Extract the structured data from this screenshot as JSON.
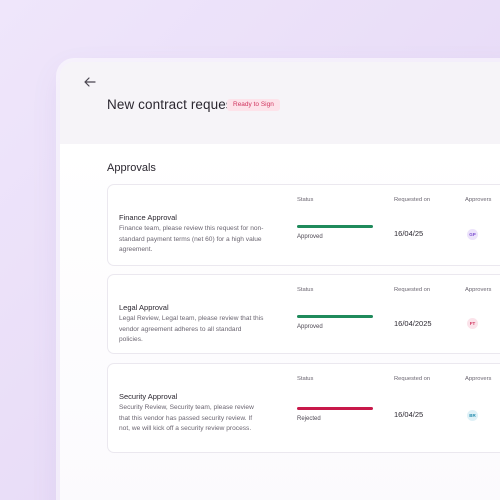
{
  "header": {
    "title": "New contract request",
    "status": "Ready to Sign",
    "back_icon": "arrow-left-icon"
  },
  "section": {
    "title": "Approvals"
  },
  "columns": {
    "status": "Status",
    "requested_on": "Requested on",
    "approvers": "Approvers"
  },
  "approvals": [
    {
      "name": "Finance Approval",
      "description": "Finance team, please review this request for non-standard payment terms (net 60) for a high value agreement.",
      "status": "Approved",
      "status_color": "#1f8a5b",
      "requested_on": "16/04/25",
      "approver_initials": "GP",
      "approver_color": "#7b4fd0",
      "approver_bg": "#ece3fb"
    },
    {
      "name": "Legal Approval",
      "description": "Legal Review, Legal team, please review that this vendor agreement adheres to all standard policies.",
      "status": "Approved",
      "status_color": "#1f8a5b",
      "requested_on": "16/04/2025",
      "approver_initials": "FT",
      "approver_color": "#d0345e",
      "approver_bg": "#fbe3ea"
    },
    {
      "name": "Security Approval",
      "description": "Security Review, Security team, please review that this vendor has passed security review. If not, we will kick off a security review process.",
      "status": "Rejected",
      "status_color": "#c8184a",
      "requested_on": "16/04/25",
      "approver_initials": "BR",
      "approver_color": "#2a8fb0",
      "approver_bg": "#dff1f7"
    }
  ]
}
